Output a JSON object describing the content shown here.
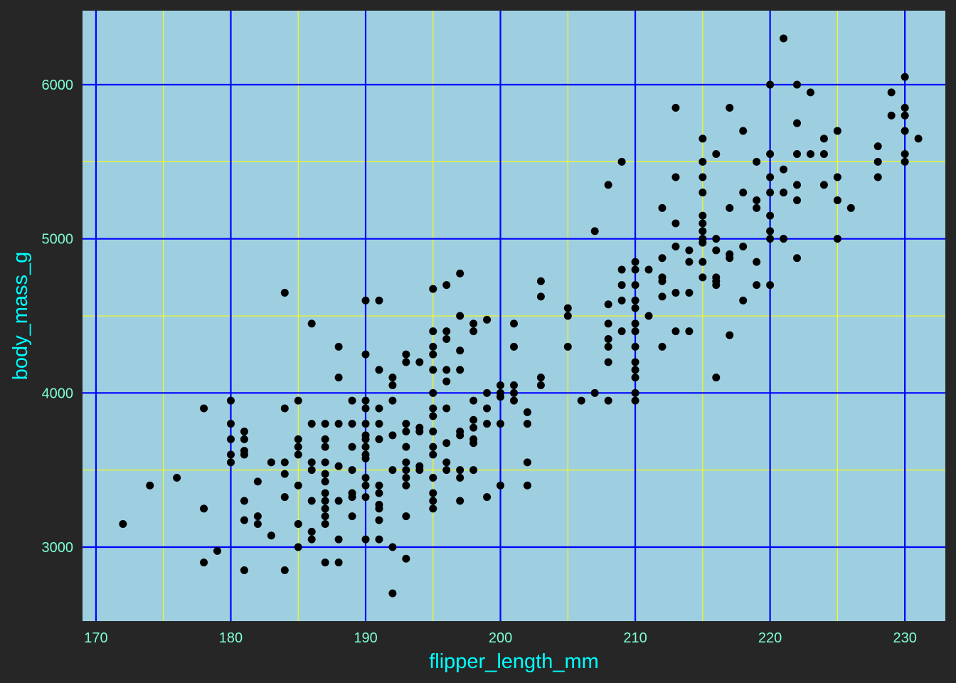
{
  "colors": {
    "page_background": "#262626",
    "panel_background": "#9ECFE0",
    "major_grid": "#0000FF",
    "minor_grid": "#FFFF00",
    "points": "#000000",
    "tick_labels": "#7FFFD4",
    "axis_titles": "#00FFFF"
  },
  "chart_data": {
    "type": "scatter",
    "title": "",
    "xlabel": "flipper_length_mm",
    "ylabel": "body_mass_g",
    "xlim": [
      169,
      233
    ],
    "ylim": [
      2520,
      6480
    ],
    "x_major_ticks": [
      170,
      180,
      190,
      200,
      210,
      220,
      230
    ],
    "x_minor_ticks": [
      175,
      185,
      195,
      205,
      215,
      225
    ],
    "y_major_ticks": [
      3000,
      4000,
      5000,
      6000
    ],
    "y_minor_ticks": [
      3500,
      4500,
      5500
    ],
    "x_tick_labels": [
      "170",
      "180",
      "190",
      "200",
      "210",
      "220",
      "230"
    ],
    "y_tick_labels": [
      "3000",
      "4000",
      "5000",
      "6000"
    ],
    "grid": true,
    "legend": "none",
    "series": [
      {
        "points": [
          [
            172,
            3150
          ],
          [
            174,
            3400
          ],
          [
            176,
            3450
          ],
          [
            178,
            3900
          ],
          [
            178,
            3250
          ],
          [
            178,
            2900
          ],
          [
            179,
            2975
          ],
          [
            180,
            3950
          ],
          [
            180,
            3800
          ],
          [
            180,
            3700
          ],
          [
            180,
            3600
          ],
          [
            180,
            3550
          ],
          [
            181,
            3750
          ],
          [
            181,
            3700
          ],
          [
            181,
            3625
          ],
          [
            181,
            3600
          ],
          [
            181,
            3300
          ],
          [
            181,
            3175
          ],
          [
            181,
            2850
          ],
          [
            182,
            3425
          ],
          [
            182,
            3200
          ],
          [
            182,
            3150
          ],
          [
            183,
            3550
          ],
          [
            183,
            3075
          ],
          [
            184,
            4650
          ],
          [
            184,
            3900
          ],
          [
            184,
            3550
          ],
          [
            184,
            3475
          ],
          [
            184,
            3325
          ],
          [
            184,
            2850
          ],
          [
            185,
            3950
          ],
          [
            185,
            3700
          ],
          [
            185,
            3650
          ],
          [
            185,
            3600
          ],
          [
            185,
            3400
          ],
          [
            185,
            3150
          ],
          [
            185,
            3000
          ],
          [
            186,
            4450
          ],
          [
            186,
            3800
          ],
          [
            186,
            3550
          ],
          [
            186,
            3500
          ],
          [
            186,
            3300
          ],
          [
            186,
            3100
          ],
          [
            186,
            3050
          ],
          [
            187,
            3800
          ],
          [
            187,
            3700
          ],
          [
            187,
            3650
          ],
          [
            187,
            3550
          ],
          [
            187,
            3475
          ],
          [
            187,
            3425
          ],
          [
            187,
            3350
          ],
          [
            187,
            3300
          ],
          [
            187,
            3250
          ],
          [
            187,
            3200
          ],
          [
            187,
            3150
          ],
          [
            187,
            2900
          ],
          [
            188,
            4300
          ],
          [
            188,
            4100
          ],
          [
            188,
            3800
          ],
          [
            188,
            3525
          ],
          [
            188,
            3300
          ],
          [
            188,
            3050
          ],
          [
            188,
            2900
          ],
          [
            189,
            3950
          ],
          [
            189,
            3800
          ],
          [
            189,
            3650
          ],
          [
            189,
            3500
          ],
          [
            189,
            3350
          ],
          [
            189,
            3325
          ],
          [
            189,
            3200
          ],
          [
            190,
            4600
          ],
          [
            190,
            4250
          ],
          [
            190,
            3950
          ],
          [
            190,
            3900
          ],
          [
            190,
            3800
          ],
          [
            190,
            3725
          ],
          [
            190,
            3700
          ],
          [
            190,
            3650
          ],
          [
            190,
            3600
          ],
          [
            190,
            3575
          ],
          [
            190,
            3450
          ],
          [
            190,
            3400
          ],
          [
            190,
            3325
          ],
          [
            190,
            3050
          ],
          [
            191,
            4600
          ],
          [
            191,
            4150
          ],
          [
            191,
            3900
          ],
          [
            191,
            3800
          ],
          [
            191,
            3700
          ],
          [
            191,
            3400
          ],
          [
            191,
            3350
          ],
          [
            191,
            3275
          ],
          [
            191,
            3250
          ],
          [
            191,
            3175
          ],
          [
            191,
            3050
          ],
          [
            192,
            4100
          ],
          [
            192,
            4050
          ],
          [
            192,
            3950
          ],
          [
            192,
            3725
          ],
          [
            192,
            3500
          ],
          [
            192,
            3000
          ],
          [
            192,
            2700
          ],
          [
            193,
            4250
          ],
          [
            193,
            4200
          ],
          [
            193,
            3800
          ],
          [
            193,
            3750
          ],
          [
            193,
            3650
          ],
          [
            193,
            3550
          ],
          [
            193,
            3500
          ],
          [
            193,
            3450
          ],
          [
            193,
            3400
          ],
          [
            193,
            3200
          ],
          [
            193,
            2925
          ],
          [
            194,
            4200
          ],
          [
            194,
            3775
          ],
          [
            194,
            3750
          ],
          [
            194,
            3525
          ],
          [
            194,
            3500
          ],
          [
            195,
            4675
          ],
          [
            195,
            4400
          ],
          [
            195,
            4300
          ],
          [
            195,
            4250
          ],
          [
            195,
            4150
          ],
          [
            195,
            4000
          ],
          [
            195,
            3900
          ],
          [
            195,
            3850
          ],
          [
            195,
            3750
          ],
          [
            195,
            3650
          ],
          [
            195,
            3600
          ],
          [
            195,
            3450
          ],
          [
            195,
            3350
          ],
          [
            195,
            3300
          ],
          [
            195,
            3250
          ],
          [
            196,
            4700
          ],
          [
            196,
            4400
          ],
          [
            196,
            4350
          ],
          [
            196,
            4150
          ],
          [
            196,
            4075
          ],
          [
            196,
            3900
          ],
          [
            196,
            3675
          ],
          [
            196,
            3550
          ],
          [
            196,
            3500
          ],
          [
            197,
            4775
          ],
          [
            197,
            4500
          ],
          [
            197,
            4275
          ],
          [
            197,
            4150
          ],
          [
            197,
            3750
          ],
          [
            197,
            3725
          ],
          [
            197,
            3500
          ],
          [
            197,
            3450
          ],
          [
            197,
            3300
          ],
          [
            198,
            4450
          ],
          [
            198,
            4400
          ],
          [
            198,
            3950
          ],
          [
            198,
            3825
          ],
          [
            198,
            3775
          ],
          [
            198,
            3700
          ],
          [
            198,
            3675
          ],
          [
            198,
            3500
          ],
          [
            199,
            4475
          ],
          [
            199,
            4000
          ],
          [
            199,
            3900
          ],
          [
            199,
            3800
          ],
          [
            199,
            3325
          ],
          [
            200,
            4050
          ],
          [
            200,
            4000
          ],
          [
            200,
            3975
          ],
          [
            200,
            3800
          ],
          [
            200,
            3400
          ],
          [
            201,
            4450
          ],
          [
            201,
            4300
          ],
          [
            201,
            4050
          ],
          [
            201,
            4000
          ],
          [
            201,
            3950
          ],
          [
            202,
            3875
          ],
          [
            202,
            3800
          ],
          [
            202,
            3550
          ],
          [
            202,
            3400
          ],
          [
            203,
            4725
          ],
          [
            203,
            4625
          ],
          [
            203,
            4100
          ],
          [
            203,
            4050
          ],
          [
            205,
            4550
          ],
          [
            205,
            4500
          ],
          [
            205,
            4300
          ],
          [
            206,
            3950
          ],
          [
            207,
            5050
          ],
          [
            207,
            4000
          ],
          [
            208,
            5350
          ],
          [
            208,
            4575
          ],
          [
            208,
            4450
          ],
          [
            208,
            4350
          ],
          [
            208,
            4300
          ],
          [
            208,
            4200
          ],
          [
            208,
            3950
          ],
          [
            209,
            5500
          ],
          [
            209,
            4800
          ],
          [
            209,
            4700
          ],
          [
            209,
            4600
          ],
          [
            209,
            4400
          ],
          [
            210,
            4850
          ],
          [
            210,
            4800
          ],
          [
            210,
            4700
          ],
          [
            210,
            4600
          ],
          [
            210,
            4550
          ],
          [
            210,
            4450
          ],
          [
            210,
            4400
          ],
          [
            210,
            4300
          ],
          [
            210,
            4200
          ],
          [
            210,
            4150
          ],
          [
            210,
            4100
          ],
          [
            210,
            4000
          ],
          [
            210,
            3950
          ],
          [
            211,
            4800
          ],
          [
            211,
            4500
          ],
          [
            212,
            5200
          ],
          [
            212,
            4875
          ],
          [
            212,
            4750
          ],
          [
            212,
            4725
          ],
          [
            212,
            4625
          ],
          [
            212,
            4300
          ],
          [
            213,
            5850
          ],
          [
            213,
            5400
          ],
          [
            213,
            5100
          ],
          [
            213,
            4950
          ],
          [
            213,
            4650
          ],
          [
            213,
            4400
          ],
          [
            214,
            4925
          ],
          [
            214,
            4850
          ],
          [
            214,
            4650
          ],
          [
            214,
            4400
          ],
          [
            215,
            5650
          ],
          [
            215,
            5500
          ],
          [
            215,
            5400
          ],
          [
            215,
            5300
          ],
          [
            215,
            5150
          ],
          [
            215,
            5100
          ],
          [
            215,
            5050
          ],
          [
            215,
            5000
          ],
          [
            215,
            4975
          ],
          [
            215,
            4850
          ],
          [
            215,
            4750
          ],
          [
            216,
            5550
          ],
          [
            216,
            5000
          ],
          [
            216,
            4925
          ],
          [
            216,
            4750
          ],
          [
            216,
            4725
          ],
          [
            216,
            4700
          ],
          [
            216,
            4100
          ],
          [
            217,
            5850
          ],
          [
            217,
            5200
          ],
          [
            217,
            4900
          ],
          [
            217,
            4875
          ],
          [
            217,
            4375
          ],
          [
            218,
            5700
          ],
          [
            218,
            5300
          ],
          [
            218,
            4950
          ],
          [
            218,
            4600
          ],
          [
            219,
            5500
          ],
          [
            219,
            5250
          ],
          [
            219,
            5200
          ],
          [
            219,
            4850
          ],
          [
            219,
            4700
          ],
          [
            220,
            6000
          ],
          [
            220,
            5550
          ],
          [
            220,
            5400
          ],
          [
            220,
            5300
          ],
          [
            220,
            5150
          ],
          [
            220,
            5050
          ],
          [
            220,
            5000
          ],
          [
            220,
            4700
          ],
          [
            221,
            6300
          ],
          [
            221,
            5450
          ],
          [
            221,
            5300
          ],
          [
            221,
            5000
          ],
          [
            222,
            6000
          ],
          [
            222,
            5750
          ],
          [
            222,
            5550
          ],
          [
            222,
            5350
          ],
          [
            222,
            5250
          ],
          [
            222,
            4875
          ],
          [
            223,
            5950
          ],
          [
            223,
            5550
          ],
          [
            224,
            5650
          ],
          [
            224,
            5550
          ],
          [
            224,
            5350
          ],
          [
            225,
            5700
          ],
          [
            225,
            5400
          ],
          [
            225,
            5250
          ],
          [
            225,
            5000
          ],
          [
            226,
            5200
          ],
          [
            228,
            5600
          ],
          [
            228,
            5500
          ],
          [
            228,
            5400
          ],
          [
            229,
            5950
          ],
          [
            229,
            5800
          ],
          [
            230,
            6050
          ],
          [
            230,
            5850
          ],
          [
            230,
            5800
          ],
          [
            230,
            5700
          ],
          [
            230,
            5550
          ],
          [
            230,
            5500
          ],
          [
            231,
            5650
          ]
        ]
      }
    ]
  }
}
